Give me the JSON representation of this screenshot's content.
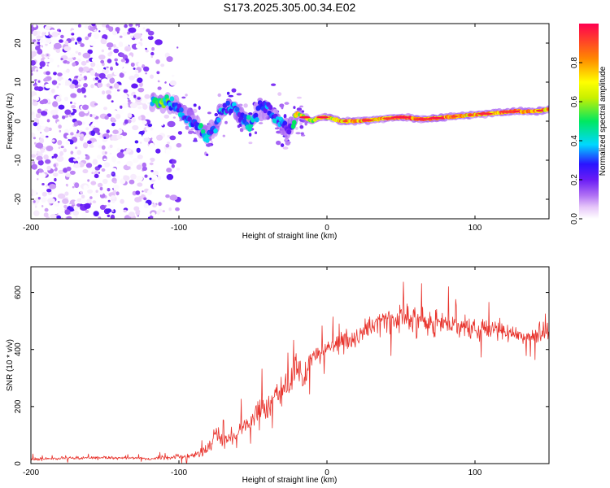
{
  "title": "S173.2025.305.00.34.E02",
  "colors": {
    "snr_line": "#e8332c",
    "frame": "#000000",
    "background": "#ffffff",
    "colormap": [
      "#ffffff",
      "#e6c6f9",
      "#9a2ef0",
      "#2a14ff",
      "#00d8ff",
      "#00e860",
      "#ffff00",
      "#ff8800",
      "#ff0050"
    ]
  },
  "chart_data": [
    {
      "type": "heatmap",
      "name": "spectrogram",
      "xlabel": "Height of straight line (km)",
      "ylabel": "Frequency (Hz)",
      "xlim": [
        -200,
        150
      ],
      "ylim": [
        -25,
        25
      ],
      "xticks": [
        -200,
        -100,
        0,
        100
      ],
      "yticks": [
        -20,
        -10,
        0,
        10,
        20
      ],
      "colorbar": {
        "label": "Normalized spectral amplitude",
        "range": [
          0,
          1
        ],
        "ticks": [
          "0.0",
          "0.2",
          "0.4",
          "0.6",
          "0.8"
        ]
      },
      "ridge": {
        "x": [
          -118,
          -110,
          -103,
          -95,
          -88,
          -82,
          -76,
          -70,
          -64,
          -58,
          -52,
          -46,
          -40,
          -35,
          -30,
          -26,
          -23,
          -20,
          -15,
          -10,
          -5,
          0,
          10,
          20,
          35,
          50,
          65,
          80,
          95,
          110,
          125,
          140,
          150
        ],
        "frequency": [
          5,
          5,
          4,
          1,
          -1,
          -4,
          -2,
          3,
          4,
          1,
          -1,
          3,
          4,
          1,
          -1,
          -2,
          -1,
          2,
          1,
          0,
          1,
          1,
          0,
          0,
          0.5,
          1,
          0.5,
          1,
          1.5,
          2,
          2.5,
          2.5,
          3
        ],
        "amplitude": [
          0.45,
          0.5,
          0.35,
          0.3,
          0.35,
          0.4,
          0.3,
          0.35,
          0.3,
          0.3,
          0.35,
          0.3,
          0.3,
          0.35,
          0.3,
          0.25,
          0.4,
          0.8,
          0.75,
          0.7,
          0.8,
          0.8,
          0.85,
          0.9,
          0.85,
          0.95,
          0.9,
          0.9,
          0.85,
          0.9,
          0.9,
          0.9,
          0.85
        ]
      },
      "noise_region_x": [
        -200,
        -100
      ]
    },
    {
      "type": "line",
      "name": "snr",
      "xlabel": "Height of straight line (km)",
      "ylabel": "SNR (10 * v/v)",
      "xlim": [
        -200,
        150
      ],
      "ylim": [
        0,
        690
      ],
      "xticks": [
        -200,
        -100,
        0,
        100
      ],
      "yticks": [
        0,
        200,
        400,
        600
      ],
      "series": [
        {
          "name": "SNR",
          "x": [
            -200,
            -180,
            -160,
            -140,
            -120,
            -105,
            -90,
            -80,
            -75,
            -70,
            -60,
            -50,
            -40,
            -30,
            -20,
            -15,
            -10,
            0,
            10,
            20,
            30,
            40,
            50,
            60,
            70,
            80,
            90,
            100,
            110,
            120,
            130,
            140,
            150
          ],
          "y": [
            15,
            18,
            20,
            20,
            18,
            22,
            30,
            50,
            110,
            70,
            110,
            160,
            200,
            260,
            330,
            290,
            370,
            400,
            420,
            440,
            480,
            500,
            510,
            520,
            490,
            490,
            480,
            470,
            470,
            460,
            450,
            450,
            460
          ],
          "noise": [
            8,
            8,
            8,
            8,
            8,
            10,
            20,
            40,
            60,
            45,
            55,
            70,
            75,
            80,
            85,
            70,
            60,
            60,
            60,
            60,
            65,
            70,
            70,
            70,
            65,
            65,
            60,
            60,
            60,
            55,
            55,
            55,
            55
          ]
        }
      ]
    }
  ]
}
